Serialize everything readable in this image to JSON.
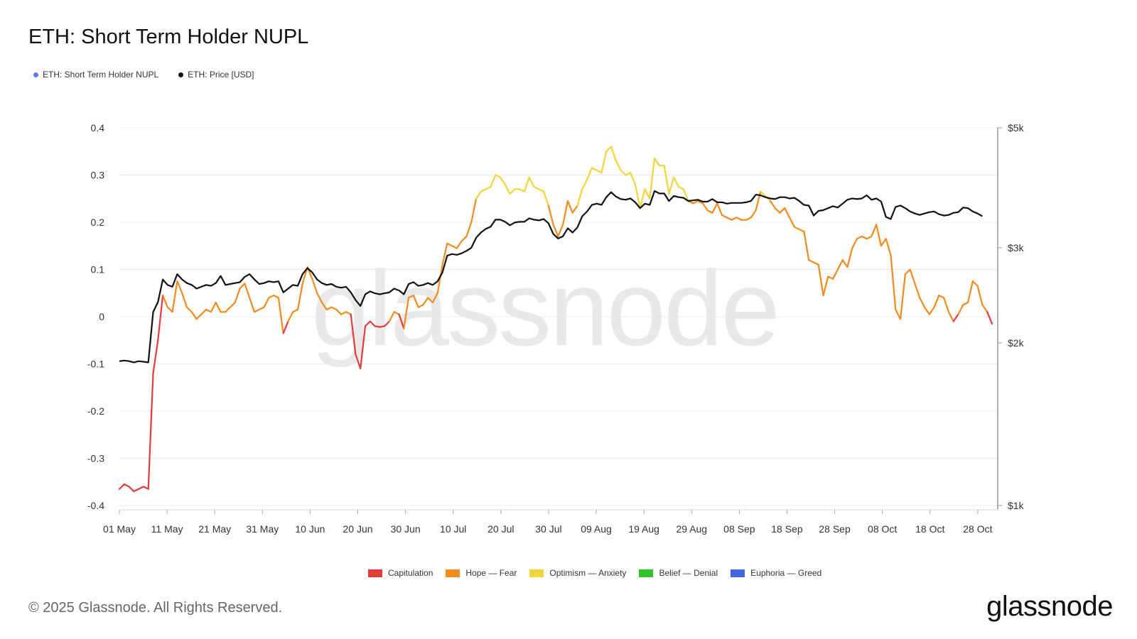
{
  "title": "ETH: Short Term Holder NUPL",
  "legend_top": [
    {
      "label": "ETH: Short Term Holder NUPL",
      "color": "#5b7bdc"
    },
    {
      "label": "ETH: Price [USD]",
      "color": "#111111"
    }
  ],
  "legend_bottom": [
    {
      "label": "Capitulation",
      "color": "#e23b3b"
    },
    {
      "label": "Hope — Fear",
      "color": "#f28b1e"
    },
    {
      "label": "Optimism — Anxiety",
      "color": "#f2d43b"
    },
    {
      "label": "Belief — Denial",
      "color": "#2fc42a"
    },
    {
      "label": "Euphoria — Greed",
      "color": "#4566e0"
    }
  ],
  "watermark": "glassnode",
  "copyright": "© 2025 Glassnode. All Rights Reserved.",
  "logo": "glassnode",
  "chart_data": {
    "type": "line",
    "x_start": "2025-05-01",
    "x_end": "2025-10-31",
    "x_tick_labels": [
      "01 May",
      "11 May",
      "21 May",
      "31 May",
      "10 Jun",
      "20 Jun",
      "30 Jun",
      "10 Jul",
      "20 Jul",
      "30 Jul",
      "09 Aug",
      "19 Aug",
      "29 Aug",
      "08 Sep",
      "18 Sep",
      "28 Sep",
      "08 Oct",
      "18 Oct",
      "28 Oct"
    ],
    "left_axis": {
      "ticks": [
        0.4,
        0.3,
        0.2,
        0.1,
        0,
        -0.1,
        -0.2,
        -0.3,
        -0.4
      ],
      "labels": [
        "0.4",
        "0.3",
        "0.2",
        "0.1",
        "0",
        "-0.1",
        "-0.2",
        "-0.3",
        "-0.4"
      ],
      "ylim": [
        -0.4,
        0.4
      ]
    },
    "right_axis": {
      "scale": "log",
      "ticks": [
        5000,
        3000,
        2000,
        1000
      ],
      "labels": [
        "$5k",
        "$3k",
        "$2k",
        "$1k"
      ],
      "ylim": [
        1000,
        5000
      ]
    },
    "grid": true,
    "zone_colors": {
      "capitulation": "#e23b3b",
      "hope_fear": "#f28b1e",
      "optimism_anxiety": "#f2d43b"
    },
    "zone_thresholds": {
      "hope_fear_min": 0,
      "optimism_anxiety_min": 0.25
    },
    "series": [
      {
        "name": "ETH: Short Term Holder NUPL",
        "axis": "left",
        "values": [
          -0.365,
          -0.355,
          -0.36,
          -0.37,
          -0.365,
          -0.36,
          -0.365,
          -0.12,
          -0.05,
          0.045,
          0.02,
          0.01,
          0.075,
          0.05,
          0.02,
          0.01,
          -0.005,
          0.005,
          0.015,
          0.01,
          0.03,
          0.01,
          0.01,
          0.02,
          0.03,
          0.06,
          0.07,
          0.04,
          0.01,
          0.015,
          0.02,
          0.04,
          0.045,
          0.04,
          -0.035,
          -0.01,
          0.01,
          0.015,
          0.07,
          0.105,
          0.08,
          0.05,
          0.03,
          0.015,
          0.02,
          0.015,
          0.005,
          0.01,
          0.005,
          -0.08,
          -0.11,
          -0.02,
          -0.01,
          -0.02,
          -0.022,
          -0.02,
          -0.01,
          0.01,
          0.005,
          -0.025,
          0.04,
          0.045,
          0.02,
          0.025,
          0.04,
          0.03,
          0.05,
          0.11,
          0.155,
          0.15,
          0.145,
          0.16,
          0.17,
          0.2,
          0.25,
          0.265,
          0.27,
          0.275,
          0.3,
          0.295,
          0.28,
          0.26,
          0.27,
          0.27,
          0.265,
          0.295,
          0.275,
          0.27,
          0.265,
          0.235,
          0.195,
          0.17,
          0.195,
          0.245,
          0.22,
          0.235,
          0.27,
          0.29,
          0.315,
          0.31,
          0.305,
          0.35,
          0.36,
          0.33,
          0.31,
          0.3,
          0.305,
          0.28,
          0.23,
          0.27,
          0.25,
          0.335,
          0.32,
          0.32,
          0.26,
          0.295,
          0.275,
          0.27,
          0.245,
          0.24,
          0.245,
          0.24,
          0.225,
          0.22,
          0.24,
          0.215,
          0.21,
          0.205,
          0.21,
          0.205,
          0.205,
          0.21,
          0.225,
          0.265,
          0.255,
          0.245,
          0.23,
          0.22,
          0.23,
          0.21,
          0.19,
          0.185,
          0.18,
          0.12,
          0.115,
          0.11,
          0.045,
          0.085,
          0.08,
          0.1,
          0.12,
          0.105,
          0.145,
          0.165,
          0.17,
          0.165,
          0.17,
          0.195,
          0.15,
          0.165,
          0.13,
          0.015,
          -0.005,
          0.09,
          0.1,
          0.07,
          0.04,
          0.02,
          0.005,
          0.02,
          0.045,
          0.04,
          0.01,
          -0.01,
          0.005,
          0.025,
          0.03,
          0.075,
          0.065,
          0.025,
          0.01,
          -0.015
        ]
      },
      {
        "name": "ETH: Price [USD]",
        "axis": "right",
        "values": [
          1850,
          1855,
          1850,
          1840,
          1850,
          1845,
          1840,
          2280,
          2380,
          2620,
          2560,
          2540,
          2680,
          2620,
          2580,
          2560,
          2520,
          2540,
          2560,
          2550,
          2580,
          2660,
          2560,
          2570,
          2580,
          2590,
          2650,
          2680,
          2620,
          2570,
          2580,
          2600,
          2590,
          2600,
          2480,
          2520,
          2560,
          2550,
          2680,
          2750,
          2700,
          2620,
          2580,
          2560,
          2570,
          2540,
          2530,
          2540,
          2480,
          2400,
          2340,
          2460,
          2490,
          2470,
          2460,
          2470,
          2480,
          2520,
          2500,
          2460,
          2570,
          2590,
          2550,
          2560,
          2580,
          2560,
          2600,
          2700,
          2900,
          2920,
          2910,
          2930,
          2960,
          3000,
          3130,
          3200,
          3250,
          3280,
          3380,
          3380,
          3350,
          3300,
          3340,
          3350,
          3350,
          3400,
          3380,
          3370,
          3390,
          3330,
          3180,
          3120,
          3150,
          3260,
          3200,
          3270,
          3430,
          3500,
          3600,
          3620,
          3600,
          3720,
          3800,
          3730,
          3690,
          3680,
          3700,
          3640,
          3550,
          3620,
          3600,
          3820,
          3780,
          3780,
          3660,
          3740,
          3720,
          3710,
          3660,
          3670,
          3680,
          3650,
          3650,
          3690,
          3640,
          3640,
          3620,
          3630,
          3630,
          3630,
          3640,
          3660,
          3760,
          3750,
          3720,
          3700,
          3690,
          3720,
          3720,
          3700,
          3710,
          3660,
          3600,
          3590,
          3440,
          3510,
          3520,
          3550,
          3580,
          3560,
          3620,
          3680,
          3700,
          3690,
          3700,
          3750,
          3680,
          3700,
          3650,
          3420,
          3390,
          3570,
          3590,
          3550,
          3500,
          3470,
          3450,
          3470,
          3490,
          3500,
          3460,
          3440,
          3450,
          3480,
          3490,
          3560,
          3550,
          3500,
          3470,
          3430
        ]
      }
    ]
  }
}
